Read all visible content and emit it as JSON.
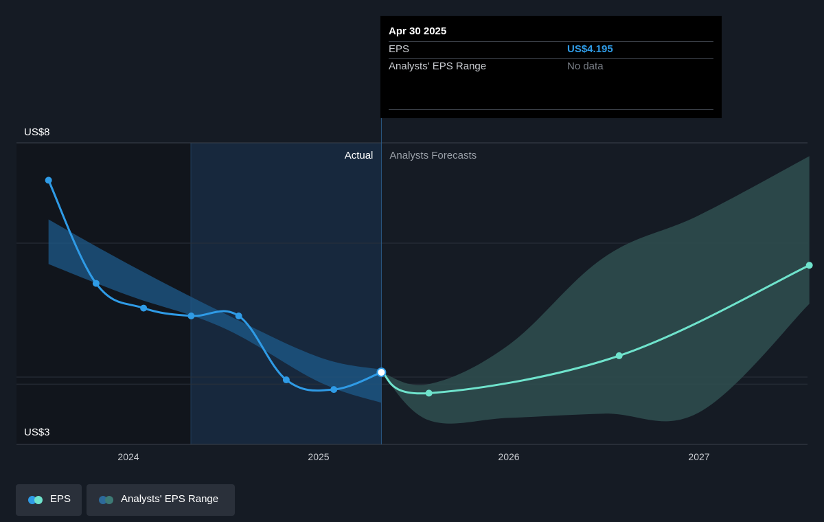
{
  "chart_data": {
    "type": "line",
    "yaxis": {
      "top_label": "US$8",
      "bottom_label": "US$3",
      "ylim": [
        3,
        8
      ]
    },
    "xaxis": {
      "tick_labels": [
        "2024",
        "2025",
        "2026",
        "2027"
      ]
    },
    "sections": {
      "actual_label": "Actual",
      "forecast_label": "Analysts Forecasts"
    },
    "series": [
      {
        "name": "EPS",
        "kind": "actual",
        "points": [
          {
            "x": 2023.58,
            "y": 7.38
          },
          {
            "x": 2023.83,
            "y": 5.67
          },
          {
            "x": 2024.08,
            "y": 5.26
          },
          {
            "x": 2024.33,
            "y": 5.13
          },
          {
            "x": 2024.58,
            "y": 5.13
          },
          {
            "x": 2024.83,
            "y": 4.07
          },
          {
            "x": 2025.08,
            "y": 3.91
          },
          {
            "x": 2025.33,
            "y": 4.195
          }
        ]
      },
      {
        "name": "EPS",
        "kind": "forecast",
        "points": [
          {
            "x": 2025.33,
            "y": 4.195
          },
          {
            "x": 2025.58,
            "y": 3.85
          },
          {
            "x": 2026.58,
            "y": 4.47
          },
          {
            "x": 2027.58,
            "y": 5.97
          }
        ]
      },
      {
        "name": "Analysts' EPS Range",
        "kind": "range",
        "x": [
          2025.33,
          2025.58,
          2026.0,
          2026.5,
          2027.0,
          2027.58
        ],
        "low": [
          4.195,
          3.4,
          3.44,
          3.51,
          3.53,
          5.33
        ],
        "high": [
          4.195,
          4.0,
          4.65,
          6.1,
          6.8,
          7.78
        ]
      },
      {
        "name": "past-estimate-band",
        "kind": "band",
        "x": [
          2023.58,
          2024.0,
          2024.5,
          2025.0,
          2025.33
        ],
        "low": [
          5.99,
          5.47,
          4.93,
          4.04,
          3.69
        ],
        "high": [
          6.73,
          5.99,
          5.18,
          4.45,
          4.24
        ]
      }
    ],
    "colors": {
      "eps_actual": "#2f9be6",
      "eps_forecast": "#6fe3cc",
      "range_fill": "#2f4f50",
      "band_fill": "#1d5a8a",
      "shade_past": "#11151c",
      "shade_actual": "#172a40"
    }
  },
  "tooltip": {
    "date": "Apr 30 2025",
    "rows": [
      {
        "label": "EPS",
        "value": "US$4.195"
      },
      {
        "label": "Analysts' EPS Range",
        "value": "No data"
      }
    ]
  },
  "legend": {
    "items": [
      {
        "label": "EPS",
        "colors": [
          "#2f9be6",
          "#6fe3cc"
        ]
      },
      {
        "label": "Analysts' EPS Range",
        "colors": [
          "#2d6a9a",
          "#3d7a75"
        ]
      }
    ]
  }
}
